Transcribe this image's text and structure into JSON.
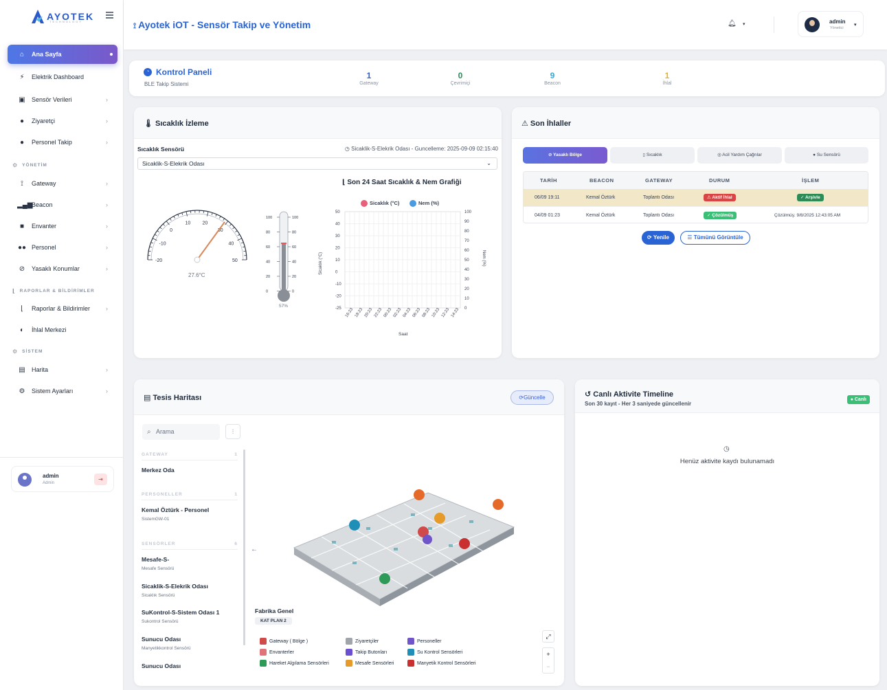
{
  "brand": {
    "name": "AYOTEK",
    "sub": "TECHNOLOGY"
  },
  "header": {
    "title": "Ayotek iOT - Sensör Takip ve Yönetim",
    "user": {
      "name": "admin",
      "role": "Yönetici"
    }
  },
  "sidebar": {
    "items": [
      {
        "label": "Ana Sayfa",
        "icon": "home-icon",
        "active": true
      },
      {
        "label": "Elektrik Dashboard",
        "icon": "bolt-icon"
      },
      {
        "label": "Sensör Verileri",
        "icon": "chip-icon"
      },
      {
        "label": "Ziyaretçi",
        "icon": "user-check-icon"
      },
      {
        "label": "Personel Takip",
        "icon": "user-icon"
      }
    ],
    "section_yonetim": "YÖNETİM",
    "yonetim": [
      {
        "label": "Gateway",
        "icon": "antenna-icon"
      },
      {
        "label": "Beacon",
        "icon": "signal-icon"
      },
      {
        "label": "Envanter",
        "icon": "box-icon"
      },
      {
        "label": "Personel",
        "icon": "users-icon"
      },
      {
        "label": "Yasaklı Konumlar",
        "icon": "ban-icon"
      }
    ],
    "section_rapor": "RAPORLAR & BİLDİRİMLER",
    "rapor": [
      {
        "label": "Raporlar & Bildirimler",
        "icon": "chart-icon"
      },
      {
        "label": "İhlal Merkezi",
        "icon": "shield-icon"
      }
    ],
    "section_sistem": "SİSTEM",
    "sistem": [
      {
        "label": "Harita",
        "icon": "map-icon"
      },
      {
        "label": "Sistem Ayarları",
        "icon": "cogs-icon"
      }
    ],
    "user": {
      "name": "admin",
      "role": "Admin"
    }
  },
  "stats": {
    "title": "Kontrol Paneli",
    "subtitle": "BLE Takip Sistemi",
    "items": [
      {
        "value": "1",
        "label": "Gateway",
        "color": "#2a63d4"
      },
      {
        "value": "0",
        "label": "Çevrimiçi",
        "color": "#2e8b57"
      },
      {
        "value": "9",
        "label": "Beacon",
        "color": "#3aa8d8"
      },
      {
        "value": "1",
        "label": "İhlal",
        "color": "#e6b422"
      }
    ]
  },
  "temp": {
    "title": "Sıcaklık İzleme",
    "sensor_label": "Sıcaklık Sensörü",
    "updated": "Sicaklik-S-Elekrik Odası - Guncelleme: 2025-09-09 02:15:40",
    "selected": "Sicaklik-S-Elekrik Odası",
    "gauge_value": "27.6°C",
    "humidity": "57%",
    "gauge_ticks": [
      "-20",
      "-10",
      "0",
      "10",
      "20",
      "30",
      "40",
      "50"
    ],
    "thermo_ticks": [
      "100",
      "80",
      "60",
      "40",
      "20",
      "0"
    ]
  },
  "chart_data": {
    "type": "line",
    "title": "Son 24 Saat Sıcaklık & Nem Grafiği",
    "legend": [
      "Sicaklık (°C)",
      "Nem (%)"
    ],
    "legend_colors": [
      "#e8607a",
      "#4a9be0"
    ],
    "xlabel": "Saat",
    "ylabel": "Sicaklık (°C)",
    "y2label": "Nem (%)",
    "x": [
      "16:23",
      "18:23",
      "20:23",
      "22:23",
      "00:23",
      "02:23",
      "04:23",
      "06:23",
      "08:23",
      "10:23",
      "12:23",
      "14:23"
    ],
    "yticks": [
      "50",
      "40",
      "30",
      "20",
      "10",
      "0",
      "-10",
      "-20",
      "-25"
    ],
    "y2ticks": [
      "100",
      "90",
      "80",
      "70",
      "60",
      "50",
      "40",
      "30",
      "20",
      "10",
      "0"
    ],
    "series": []
  },
  "violations": {
    "title": "Son İhlaller",
    "tabs": [
      "Yasaklı Bölge",
      "Sıcaklık",
      "Acil Yardım Çağrılar",
      "Su Sensörü"
    ],
    "columns": [
      "TARİH",
      "BEACON",
      "GATEWAY",
      "DURUM",
      "İŞLEM"
    ],
    "rows": [
      {
        "date": "06/09 19:11",
        "beacon": "Kemal Öztürk",
        "gateway": "Toplantı Odası",
        "status": "Aktif İhlal",
        "action": "Arşivle"
      },
      {
        "date": "04/09 01:23",
        "beacon": "Kemal Öztürk",
        "gateway": "Toplantı Odası",
        "status": "Çözülmüş",
        "action": "Çözülmüş: 9/8/2025 12:43:05 AM"
      }
    ],
    "refresh": "Yenile",
    "view_all": "Tümünü Görüntüle"
  },
  "facility": {
    "title": "Tesis Haritası",
    "update": "Güncelle",
    "search_placeholder": "Arama",
    "sections": [
      {
        "label": "GATEWAY",
        "count": "1"
      },
      {
        "label": "PERSONELLER",
        "count": "1"
      },
      {
        "label": "SENSÖRLER",
        "count": "6"
      }
    ],
    "gateway": {
      "name": "Merkez Oda"
    },
    "personel": {
      "name": "Kemal Öztürk - Personel",
      "sub": "SistemGW-01"
    },
    "sensors": [
      {
        "name": "Mesafe-S-",
        "sub": "Mesafe Sensörü"
      },
      {
        "name": "Sicaklik-S-Elekrik Odası",
        "sub": "Sicaklık Sensörü"
      },
      {
        "name": "SuKontrol-S-Sistem Odası 1",
        "sub": "Sukontrol Sensörü"
      },
      {
        "name": "Sunucu Odası",
        "sub": "Manyetikkontrol Sensörü"
      },
      {
        "name": "Sunucu Odası",
        "sub": ""
      }
    ],
    "map_title": "Fabrika Genel",
    "floor": "KAT PLAN 2",
    "legend": [
      {
        "label": "Gateway ( Bölge )",
        "color": "#d04a4a"
      },
      {
        "label": "Ziyaretçiler",
        "color": "#a0a4ab"
      },
      {
        "label": "Personeller",
        "color": "#6f55c9"
      },
      {
        "label": "Envanterler",
        "color": "#e0737a"
      },
      {
        "label": "Takip Butonları",
        "color": "#6a4fd0"
      },
      {
        "label": "Su Kontrol Sensörleri",
        "color": "#1f8fb8"
      },
      {
        "label": "Hareket Algılama Sensörleri",
        "color": "#2e9a58"
      },
      {
        "label": "Mesafe Sensörleri",
        "color": "#e59a2a"
      },
      {
        "label": "Manyetik Kontrol Sensörleri",
        "color": "#c93030"
      }
    ]
  },
  "timeline": {
    "title": "Canlı Aktivite Timeline",
    "subtitle": "Son 30 kayıt - Her 3 saniyede güncellenir",
    "badge": "Canlı",
    "empty": "Henüz aktivite kaydı bulunamadı"
  }
}
